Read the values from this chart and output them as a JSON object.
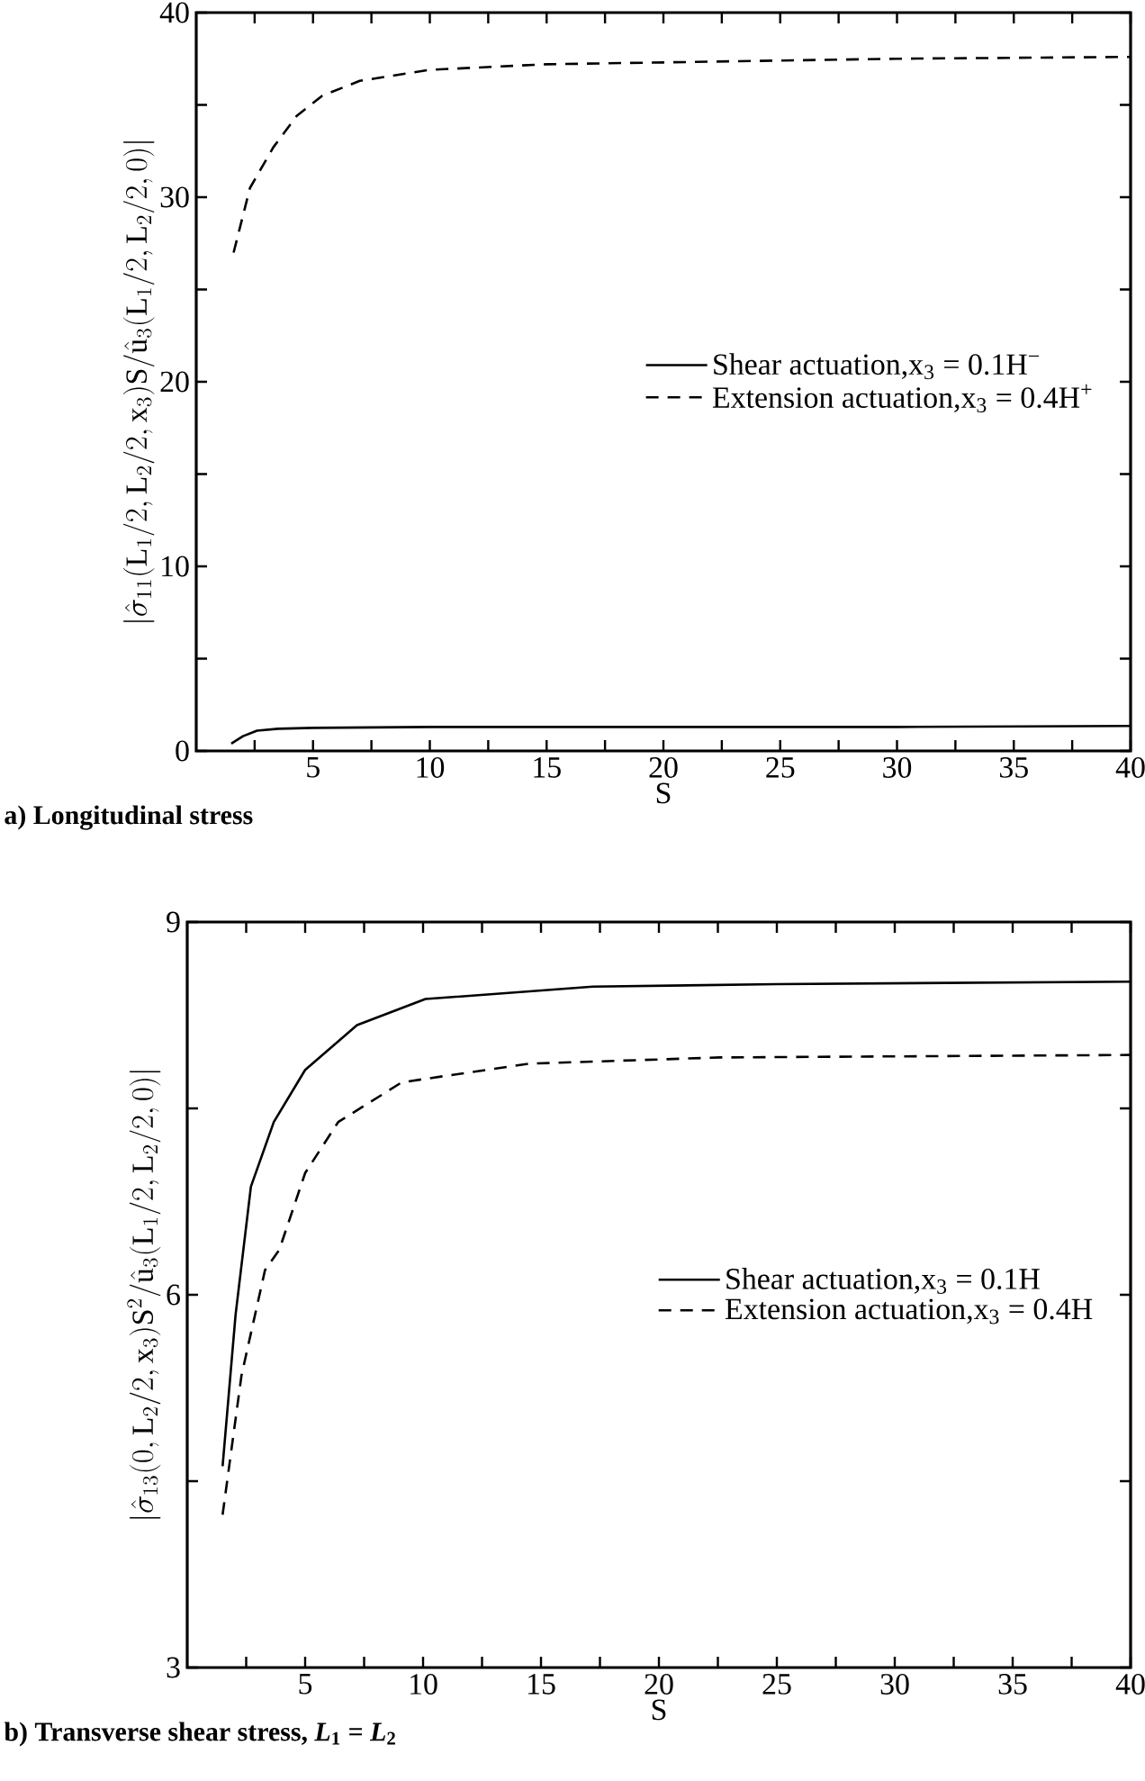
{
  "chart_data": [
    {
      "type": "line",
      "title": "a) Longitudinal stress",
      "xlabel": "S",
      "ylabel": "|\\hat{\\sigma}_{11}(\\mathrm{L}_1/2,\\mathrm{L}_2/2,\\mathrm{x}_3)\\mathrm{S}/\\hat{\\mathrm{u}}_3(\\mathrm{L}_1/2,\\mathrm{L}_2/2,0)|",
      "xlim": [
        0,
        40
      ],
      "ylim": [
        0,
        40
      ],
      "xticks": [
        {
          "value": 2.5,
          "label": null
        },
        5,
        {
          "value": 7.5,
          "label": null
        },
        10,
        {
          "value": 12.5,
          "label": null
        },
        15,
        {
          "value": 17.5,
          "label": null
        },
        20,
        {
          "value": 22.5,
          "label": null
        },
        25,
        {
          "value": 27.5,
          "label": null
        },
        30,
        {
          "value": 32.5,
          "label": null
        },
        35,
        {
          "value": 37.5,
          "label": null
        },
        40
      ],
      "yticks": [
        0,
        {
          "value": 5,
          "label": null
        },
        10,
        {
          "value": 15,
          "label": null
        },
        20,
        {
          "value": 25,
          "label": null
        },
        30,
        {
          "value": 35,
          "label": null
        },
        40
      ],
      "legend": "right",
      "series": [
        {
          "name": "Shear actuation,x$_{3}$ = 0.1H$^{−}$",
          "color": "#000000",
          "line_style": "solid",
          "x": [
            1.5,
            2.0,
            2.6,
            3.5,
            5,
            10,
            20,
            30,
            40
          ],
          "values": [
            0.4,
            0.8,
            1.1,
            1.2,
            1.25,
            1.3,
            1.3,
            1.3,
            1.35
          ]
        },
        {
          "name": "Extension actuation,x$_{3}$ = 0.4H$^{+}$",
          "color": "#000000",
          "line_style": "dashed",
          "x": [
            1.6,
            2.3,
            3.3,
            4.3,
            5.4,
            7,
            10,
            15,
            20,
            30,
            40
          ],
          "values": [
            27.0,
            30.5,
            32.7,
            34.4,
            35.5,
            36.3,
            36.9,
            37.2,
            37.3,
            37.5,
            37.6
          ]
        }
      ]
    },
    {
      "type": "line",
      "title": "b) Transverse shear stress, *L*$_{1}$ = *L*$_{2}$",
      "xlabel": "S",
      "ylabel": "|\\hat{\\sigma}_{13}(0,\\mathrm{L}_2/2,\\mathrm{x}_3)\\mathrm{S}^2/\\hat{\\mathrm{u}}_3(\\mathrm{L}_1/2,\\mathrm{L}_2/2,0)|",
      "xlim": [
        0,
        40
      ],
      "ylim": [
        3,
        9
      ],
      "xticks": [
        {
          "value": 2.5,
          "label": null
        },
        5,
        {
          "value": 7.5,
          "label": null
        },
        10,
        {
          "value": 12.5,
          "label": null
        },
        15,
        {
          "value": 17.5,
          "label": null
        },
        20,
        {
          "value": 22.5,
          "label": null
        },
        25,
        {
          "value": 27.5,
          "label": null
        },
        30,
        {
          "value": 32.5,
          "label": null
        },
        35,
        {
          "value": 37.5,
          "label": null
        },
        40
      ],
      "yticks": [
        3,
        {
          "value": 4.5,
          "label": null
        },
        6,
        {
          "value": 7.5,
          "label": null
        },
        9
      ],
      "legend": "right",
      "series": [
        {
          "name": "Shear actuation,x$_{3}$ = 0.1H",
          "color": "#000000",
          "line_style": "solid",
          "x": [
            1.5,
            2.05,
            2.7,
            3.67,
            5.0,
            7.2,
            10.1,
            17.2,
            25,
            40
          ],
          "values": [
            4.62,
            5.84,
            6.87,
            7.39,
            7.81,
            8.17,
            8.38,
            8.48,
            8.5,
            8.52
          ]
        },
        {
          "name": "Extension actuation,x$_{3}$ = 0.4H",
          "color": "#000000",
          "line_style": "dashed",
          "x": [
            1.5,
            2.3,
            3.3,
            3.9,
            5.0,
            6.4,
            9.1,
            14.5,
            22.6,
            40
          ],
          "values": [
            4.23,
            5.35,
            6.2,
            6.36,
            6.98,
            7.39,
            7.71,
            7.86,
            7.91,
            7.93
          ]
        }
      ]
    }
  ]
}
